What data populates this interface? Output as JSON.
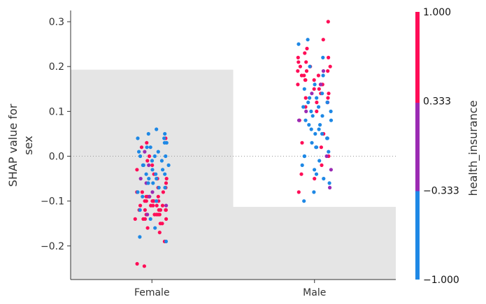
{
  "chart_data": {
    "type": "scatter",
    "subtype": "shap-dependence-categorical",
    "ylabel_lines": [
      "SHAP value for",
      "sex"
    ],
    "categories": [
      "Female",
      "Male"
    ],
    "ylim": [
      -0.275,
      0.325
    ],
    "y_ticks": [
      0.3,
      0.2,
      0.1,
      0.0,
      -0.1,
      -0.2
    ],
    "y_tick_labels": [
      "0.3",
      "0.2",
      "0.1",
      "0.0",
      "−0.1",
      "−0.2"
    ],
    "zero_line": "dotted",
    "background_histogram": [
      {
        "category": "Female",
        "relative_height": 0.78
      },
      {
        "category": "Male",
        "relative_height": 0.27
      }
    ],
    "color_feature": "health_insurance",
    "colorbar_ticks": [
      "1.000",
      "0.333",
      "−0.333",
      "−1.000"
    ],
    "colorbar_values": [
      1.0,
      0.333,
      -0.333,
      -1.0
    ],
    "colors": {
      "high": "#ff0d57",
      "mid": "#9b2bb3",
      "low": "#1e88e5",
      "histogram": "#e5e5e5",
      "axis": "#333333"
    },
    "series": [
      {
        "category": "Female",
        "color_value": 1.0,
        "values": [
          -0.14,
          -0.12,
          -0.1,
          -0.08,
          -0.13,
          -0.11,
          -0.09,
          -0.15,
          -0.12,
          -0.1,
          -0.07,
          -0.13,
          -0.11,
          -0.14,
          -0.09,
          -0.12,
          -0.1,
          -0.08,
          -0.13,
          -0.11,
          -0.06,
          -0.15,
          -0.12,
          -0.1,
          -0.14,
          -0.09,
          -0.11,
          -0.13,
          -0.07,
          -0.12,
          -0.16,
          -0.1,
          -0.08,
          -0.13,
          -0.11,
          -0.14,
          -0.09,
          -0.12,
          -0.05,
          -0.1,
          -0.17,
          -0.19,
          -0.24,
          -0.245,
          -0.04,
          -0.02,
          0.0,
          0.02,
          0.04,
          -0.03,
          -0.01,
          0.03,
          -0.05
        ]
      },
      {
        "category": "Female",
        "color_value": 0.333,
        "values": [
          -0.11,
          -0.08,
          -0.05,
          -0.02,
          0.01,
          -0.13,
          -0.09,
          -0.06
        ]
      },
      {
        "category": "Female",
        "color_value": -1.0,
        "values": [
          -0.06,
          -0.04,
          -0.02,
          0.0,
          0.02,
          0.04,
          0.06,
          -0.05,
          -0.03,
          -0.01,
          0.01,
          0.03,
          0.05,
          -0.07,
          -0.02,
          0.0,
          0.02,
          -0.04,
          -0.06,
          -0.01,
          0.03,
          0.01,
          -0.03,
          -0.08,
          -0.05,
          0.0,
          0.04,
          -0.02,
          -0.09,
          -0.1,
          -0.12,
          -0.14,
          -0.16,
          -0.18,
          -0.19,
          0.05,
          -0.07,
          -0.04
        ]
      },
      {
        "category": "Male",
        "color_value": 1.0,
        "values": [
          0.3,
          0.26,
          0.24,
          0.22,
          0.21,
          0.2,
          0.19,
          0.18,
          0.17,
          0.16,
          0.15,
          0.14,
          0.13,
          0.12,
          0.11,
          0.2,
          0.19,
          0.18,
          0.17,
          0.16,
          0.22,
          0.15,
          0.14,
          0.21,
          0.13,
          0.18,
          0.2,
          0.12,
          0.16,
          0.19,
          0.17,
          0.23,
          0.1,
          0.08,
          0.05,
          0.02,
          -0.02,
          -0.05,
          -0.08,
          -0.04,
          0.0,
          0.03
        ]
      },
      {
        "category": "Male",
        "color_value": 0.333,
        "values": [
          0.16,
          0.12,
          0.08,
          0.04,
          0.0,
          -0.03,
          -0.07,
          0.19,
          0.14,
          0.1
        ]
      },
      {
        "category": "Male",
        "color_value": -1.0,
        "values": [
          0.14,
          0.12,
          0.1,
          0.08,
          0.06,
          0.04,
          0.02,
          0.13,
          0.11,
          0.09,
          0.07,
          0.05,
          0.03,
          0.15,
          0.12,
          0.1,
          0.08,
          0.06,
          0.04,
          0.01,
          0.0,
          -0.01,
          -0.02,
          -0.03,
          -0.04,
          -0.05,
          -0.06,
          -0.08,
          -0.1,
          0.09,
          0.11,
          0.07,
          0.05,
          0.13,
          0.16,
          0.18,
          0.2,
          0.22,
          0.25,
          0.26,
          0.02,
          0.0
        ]
      }
    ]
  }
}
